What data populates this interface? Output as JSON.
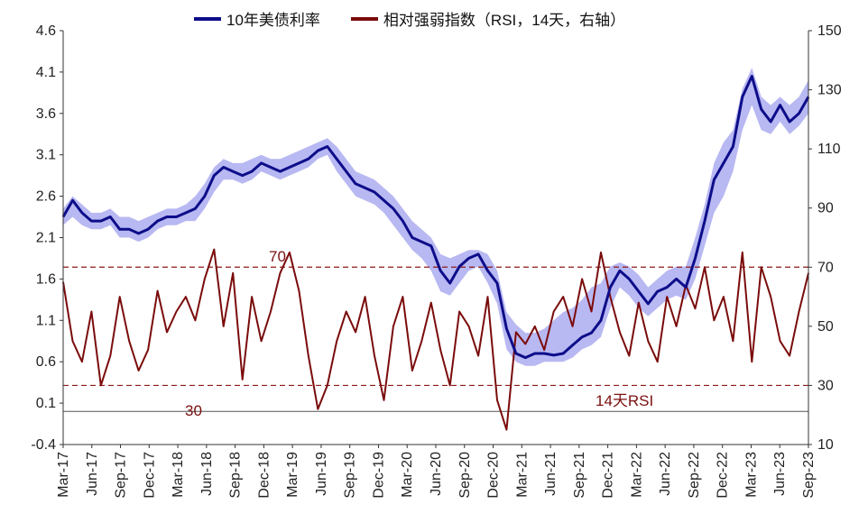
{
  "chart_data": {
    "type": "line",
    "legend": {
      "position": "top",
      "items": [
        {
          "label": "10年美债利率",
          "color": "#0d0d8a"
        },
        {
          "label": "相对强弱指数（RSI，14天，右轴）",
          "color": "#7a0b0b"
        }
      ]
    },
    "x_tick_labels": [
      "Mar-17",
      "Jun-17",
      "Sep-17",
      "Dec-17",
      "Mar-18",
      "Jun-18",
      "Sep-18",
      "Dec-18",
      "Mar-19",
      "Jun-19",
      "Sep-19",
      "Dec-19",
      "Mar-20",
      "Jun-20",
      "Sep-20",
      "Dec-20",
      "Mar-21",
      "Jun-21",
      "Sep-21",
      "Dec-21",
      "Mar-22",
      "Jun-22",
      "Sep-22",
      "Dec-22",
      "Mar-23",
      "Jun-23",
      "Sep-23"
    ],
    "y_left": {
      "ticks": [
        "4.6",
        "4.1",
        "3.6",
        "3.1",
        "2.6",
        "2.1",
        "1.6",
        "1.1",
        "0.6",
        "0.1",
        "-0.4"
      ],
      "lim": [
        -0.4,
        4.6
      ]
    },
    "y_right": {
      "ticks": [
        "150",
        "130",
        "110",
        "90",
        "70",
        "50",
        "30",
        "10"
      ],
      "lim": [
        10,
        150
      ]
    },
    "reference_lines": [
      {
        "label": "70",
        "value": 70,
        "axis": "right"
      },
      {
        "label": "30",
        "value": 30,
        "axis": "right"
      }
    ],
    "annotation": "14天RSI",
    "series": [
      {
        "name": "10年美债利率",
        "axis": "left",
        "color": "#0d0d8a",
        "x": [
          0,
          1,
          2,
          3,
          4,
          5,
          6,
          7,
          8,
          9,
          10,
          11,
          12,
          13,
          14,
          15,
          16,
          17,
          18,
          19,
          20,
          21,
          22,
          23,
          24,
          25,
          26,
          27,
          28,
          29,
          30,
          31,
          32,
          33,
          34,
          35,
          36,
          37,
          38,
          39,
          40,
          41,
          42,
          43,
          44,
          45,
          46,
          47,
          48,
          49,
          50,
          51,
          52,
          53,
          54,
          55,
          56,
          57,
          58,
          59,
          60,
          61,
          62,
          63,
          64,
          65,
          66,
          67,
          68,
          69,
          70,
          71,
          72,
          73,
          74,
          75,
          76,
          77,
          78,
          79
        ],
        "values": [
          2.35,
          2.55,
          2.4,
          2.3,
          2.3,
          2.35,
          2.2,
          2.2,
          2.15,
          2.2,
          2.3,
          2.35,
          2.35,
          2.4,
          2.45,
          2.6,
          2.85,
          2.95,
          2.9,
          2.85,
          2.9,
          3.0,
          2.95,
          2.9,
          2.95,
          3.0,
          3.05,
          3.15,
          3.2,
          3.05,
          2.9,
          2.75,
          2.7,
          2.65,
          2.55,
          2.45,
          2.3,
          2.1,
          2.05,
          2.0,
          1.7,
          1.55,
          1.75,
          1.85,
          1.9,
          1.7,
          1.55,
          1.0,
          0.7,
          0.65,
          0.7,
          0.7,
          0.68,
          0.7,
          0.8,
          0.9,
          0.95,
          1.1,
          1.5,
          1.7,
          1.6,
          1.45,
          1.3,
          1.45,
          1.5,
          1.6,
          1.5,
          1.85,
          2.3,
          2.8,
          3.0,
          3.2,
          3.8,
          4.05,
          3.65,
          3.5,
          3.7,
          3.5,
          3.6,
          3.8
        ]
      },
      {
        "name": "相对强弱指数（RSI，14天，右轴）",
        "axis": "right",
        "color": "#7a0b0b",
        "x": [
          0,
          1,
          2,
          3,
          4,
          5,
          6,
          7,
          8,
          9,
          10,
          11,
          12,
          13,
          14,
          15,
          16,
          17,
          18,
          19,
          20,
          21,
          22,
          23,
          24,
          25,
          26,
          27,
          28,
          29,
          30,
          31,
          32,
          33,
          34,
          35,
          36,
          37,
          38,
          39,
          40,
          41,
          42,
          43,
          44,
          45,
          46,
          47,
          48,
          49,
          50,
          51,
          52,
          53,
          54,
          55,
          56,
          57,
          58,
          59,
          60,
          61,
          62,
          63,
          64,
          65,
          66,
          67,
          68,
          69,
          70,
          71,
          72,
          73,
          74,
          75,
          76,
          77,
          78,
          79
        ],
        "values": [
          65,
          45,
          38,
          55,
          30,
          40,
          60,
          45,
          35,
          42,
          62,
          48,
          55,
          60,
          52,
          66,
          76,
          50,
          68,
          32,
          60,
          45,
          55,
          68,
          75,
          62,
          40,
          22,
          30,
          45,
          55,
          48,
          60,
          40,
          25,
          50,
          60,
          35,
          45,
          58,
          42,
          30,
          55,
          50,
          40,
          60,
          25,
          15,
          48,
          44,
          50,
          42,
          55,
          60,
          50,
          66,
          55,
          75,
          60,
          48,
          40,
          58,
          45,
          38,
          60,
          50,
          64,
          56,
          70,
          52,
          60,
          45,
          75,
          38,
          70,
          60,
          45,
          40,
          55,
          68
        ]
      }
    ],
    "band": {
      "color": "#b8b8f2",
      "upper": [
        2.45,
        2.6,
        2.5,
        2.4,
        2.4,
        2.45,
        2.35,
        2.35,
        2.3,
        2.35,
        2.4,
        2.45,
        2.45,
        2.5,
        2.6,
        2.75,
        2.95,
        3.05,
        3.0,
        3.0,
        3.05,
        3.1,
        3.05,
        3.05,
        3.1,
        3.15,
        3.2,
        3.25,
        3.3,
        3.2,
        3.05,
        2.9,
        2.85,
        2.8,
        2.7,
        2.6,
        2.45,
        2.3,
        2.2,
        2.1,
        1.9,
        1.85,
        1.9,
        1.95,
        1.95,
        1.9,
        1.7,
        1.2,
        1.05,
        0.95,
        0.95,
        1.0,
        1.1,
        1.2,
        1.25,
        1.35,
        1.5,
        1.55,
        1.75,
        1.8,
        1.75,
        1.65,
        1.5,
        1.6,
        1.7,
        1.75,
        1.75,
        2.1,
        2.5,
        3.0,
        3.25,
        3.4,
        3.9,
        4.15,
        3.8,
        3.7,
        3.8,
        3.7,
        3.8,
        4.0
      ],
      "lower": [
        2.25,
        2.35,
        2.25,
        2.2,
        2.2,
        2.25,
        2.1,
        2.1,
        2.05,
        2.1,
        2.2,
        2.25,
        2.25,
        2.3,
        2.3,
        2.45,
        2.65,
        2.8,
        2.8,
        2.75,
        2.8,
        2.9,
        2.85,
        2.8,
        2.85,
        2.9,
        2.95,
        3.05,
        3.1,
        2.9,
        2.75,
        2.6,
        2.55,
        2.5,
        2.4,
        2.25,
        2.1,
        1.95,
        1.85,
        1.7,
        1.45,
        1.4,
        1.55,
        1.7,
        1.75,
        1.55,
        1.3,
        0.75,
        0.6,
        0.55,
        0.55,
        0.6,
        0.6,
        0.6,
        0.65,
        0.75,
        0.8,
        0.9,
        1.25,
        1.5,
        1.4,
        1.25,
        1.15,
        1.25,
        1.35,
        1.4,
        1.35,
        1.6,
        2.0,
        2.4,
        2.6,
        2.9,
        3.4,
        3.7,
        3.4,
        3.35,
        3.5,
        3.35,
        3.45,
        3.6
      ]
    }
  }
}
